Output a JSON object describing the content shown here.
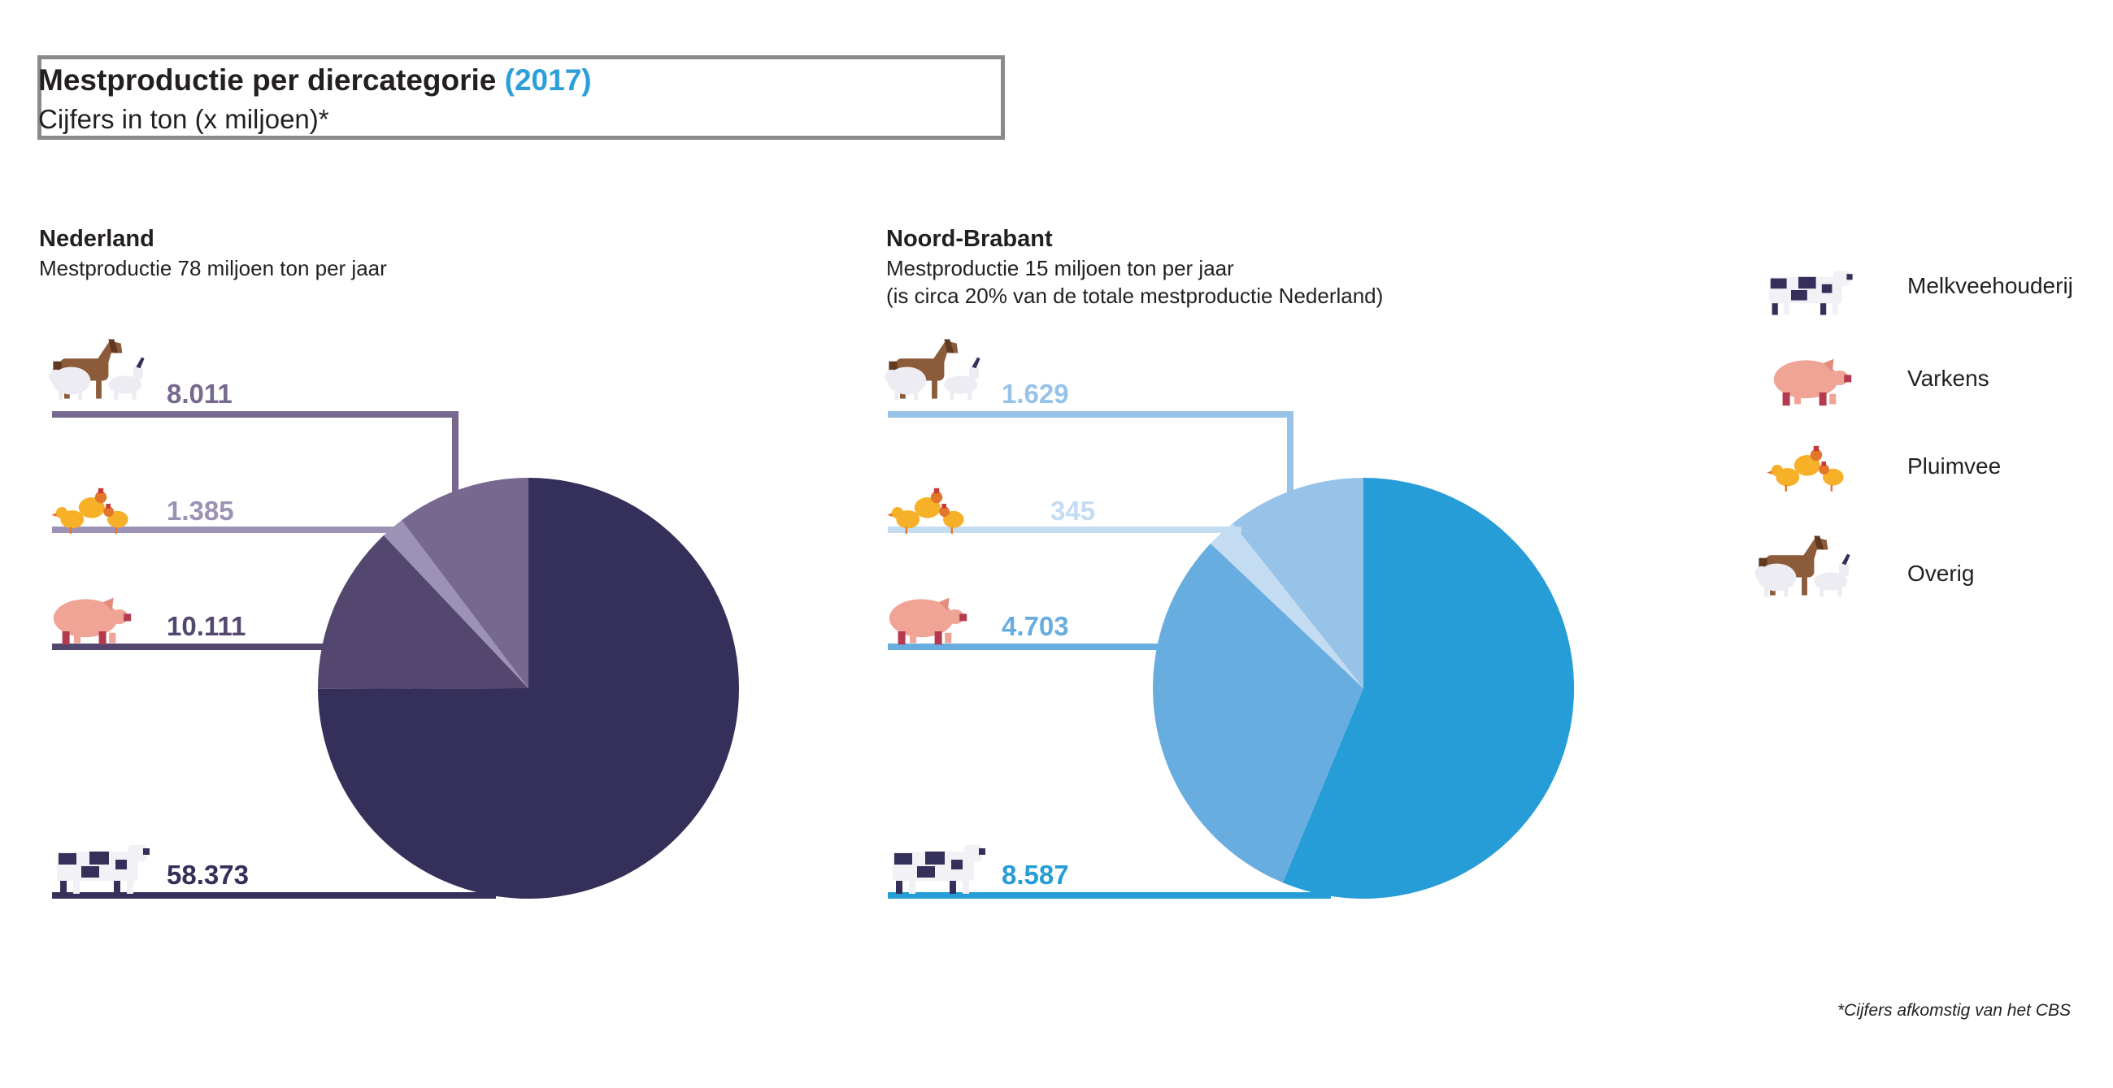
{
  "header": {
    "title": "Mestproductie per diercategorie",
    "year": "(2017)",
    "subtitle": "Cijfers in ton (x miljoen)*"
  },
  "sections": [
    {
      "title": "Nederland",
      "subtitle_lines": [
        "Mestproductie 78 miljoen ton per jaar"
      ]
    },
    {
      "title": "Noord-Brabant",
      "subtitle_lines": [
        "Mestproductie 15 miljoen ton per jaar",
        "(is circa 20% van de totale mestproductie Nederland)"
      ]
    }
  ],
  "legend": [
    {
      "label": "Melkveehouderij",
      "icon": "cow-icon"
    },
    {
      "label": "Varkens",
      "icon": "pig-icon"
    },
    {
      "label": "Pluimvee",
      "icon": "chickens-icon"
    },
    {
      "label": "Overig",
      "icon": "horse-sheep-goat-icon"
    }
  ],
  "footnote": "*Cijfers afkomstig van het CBS",
  "chart_data": [
    {
      "type": "pie",
      "title": "Nederland",
      "categories": [
        "Melkveehouderij",
        "Varkens",
        "Pluimvee",
        "Overig"
      ],
      "values": [
        58.373,
        10.111,
        1.385,
        8.011
      ],
      "labels": [
        "58.373",
        "10.111",
        "1.385",
        "8.011"
      ],
      "colors": [
        "#35305a",
        "#54476f",
        "#9b92b5",
        "#76688f"
      ]
    },
    {
      "type": "pie",
      "title": "Noord-Brabant",
      "categories": [
        "Melkveehouderij",
        "Varkens",
        "Pluimvee",
        "Overig"
      ],
      "values": [
        8.587,
        4.703,
        0.345,
        1.629
      ],
      "labels": [
        "8.587",
        "4.703",
        "345",
        "1.629"
      ],
      "colors": [
        "#279dd8",
        "#67addf",
        "#c3dcf2",
        "#98c3e9"
      ]
    }
  ]
}
